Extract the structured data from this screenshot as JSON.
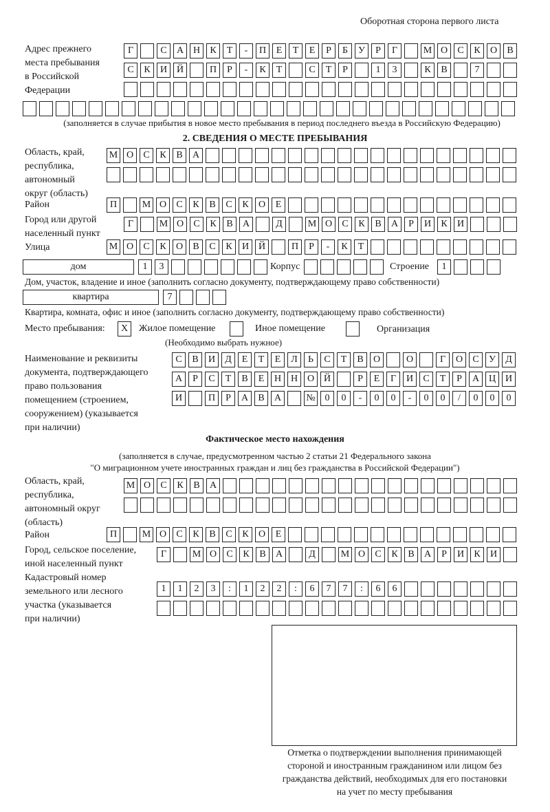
{
  "header": {
    "page_side": "Оборотная сторона первого листа"
  },
  "previous_address": {
    "label": [
      "Адрес прежнего",
      "места пребывания",
      "в Российской",
      "Федерации"
    ],
    "rows": [
      [
        "Г",
        "",
        "С",
        "А",
        "Н",
        "К",
        "Т",
        "-",
        "П",
        "Е",
        "Т",
        "Е",
        "Р",
        "Б",
        "У",
        "Р",
        "Г",
        "",
        "М",
        "О",
        "С",
        "К",
        "О",
        "В"
      ],
      [
        "С",
        "К",
        "И",
        "Й",
        "",
        "П",
        "Р",
        "-",
        "К",
        "Т",
        "",
        "С",
        "Т",
        "Р",
        "",
        "1",
        "3",
        "",
        "К",
        "В",
        "",
        "7",
        "",
        ""
      ],
      [
        "",
        "",
        "",
        "",
        "",
        "",
        "",
        "",
        "",
        "",
        "",
        "",
        "",
        "",
        "",
        "",
        "",
        "",
        "",
        "",
        "",
        "",
        "",
        ""
      ],
      [
        "",
        "",
        "",
        "",
        "",
        "",
        "",
        "",
        "",
        "",
        "",
        "",
        "",
        "",
        "",
        "",
        "",
        "",
        "",
        "",
        "",
        "",
        "",
        "",
        "",
        "",
        "",
        "",
        "",
        ""
      ]
    ],
    "note": "(заполняется в случае прибытия в новое место пребывания в период последнего въезда в Российскую Федерацию)"
  },
  "section2": {
    "title": "2. СВЕДЕНИЯ О МЕСТЕ ПРЕБЫВАНИЯ",
    "region": {
      "label": [
        "Область, край,",
        "республика,",
        "автономный",
        "округ (область)"
      ],
      "rows": [
        [
          "М",
          "О",
          "С",
          "К",
          "В",
          "А",
          "",
          "",
          "",
          "",
          "",
          "",
          "",
          "",
          "",
          "",
          "",
          "",
          "",
          "",
          "",
          "",
          "",
          "",
          ""
        ],
        [
          "",
          "",
          "",
          "",
          "",
          "",
          "",
          "",
          "",
          "",
          "",
          "",
          "",
          "",
          "",
          "",
          "",
          "",
          "",
          "",
          "",
          "",
          "",
          "",
          ""
        ]
      ]
    },
    "district": {
      "label": "Район",
      "cells": [
        "П",
        "",
        "М",
        "О",
        "С",
        "К",
        "В",
        "С",
        "К",
        "О",
        "Е",
        "",
        "",
        "",
        "",
        "",
        "",
        "",
        "",
        "",
        "",
        "",
        "",
        "",
        ""
      ]
    },
    "city": {
      "label": [
        "Город или другой",
        "населенный пункт"
      ],
      "cells": [
        "Г",
        "",
        "М",
        "О",
        "С",
        "К",
        "В",
        "А",
        "",
        "Д",
        "",
        "М",
        "О",
        "С",
        "К",
        "В",
        "А",
        "Р",
        "И",
        "К",
        "И",
        "",
        "",
        ""
      ]
    },
    "street": {
      "label": "Улица",
      "cells": [
        "М",
        "О",
        "С",
        "К",
        "О",
        "В",
        "С",
        "К",
        "И",
        "Й",
        "",
        "П",
        "Р",
        "-",
        "К",
        "Т",
        "",
        "",
        "",
        "",
        "",
        "",
        "",
        "",
        ""
      ]
    },
    "house": {
      "type": "дом",
      "cells": [
        "1",
        "3",
        "",
        "",
        "",
        "",
        "",
        ""
      ],
      "korpus_label": "Корпус",
      "korpus_cells": [
        "",
        "",
        "",
        "",
        ""
      ],
      "building_label": "Строение",
      "building_cells": [
        "1",
        "",
        "",
        ""
      ],
      "caption": "Дом, участок, владение и иное (заполнить согласно документу, подтверждающему право собственности)"
    },
    "apartment": {
      "type": "квартира",
      "cells": [
        "7",
        "",
        "",
        ""
      ],
      "caption": "Квартира, комната, офис и иное (заполнить согласно документу, подтверждающему право собственности)"
    },
    "stay_place": {
      "label": "Место пребывания:",
      "options": [
        {
          "label": "Жилое помещение",
          "mark": "X"
        },
        {
          "label": "Иное помещение",
          "mark": ""
        },
        {
          "label": "Организация",
          "mark": ""
        }
      ],
      "note": "(Необходимо выбрать нужное)"
    },
    "document": {
      "label": [
        "Наименование и реквизиты",
        "документа, подтверждающего",
        "право пользования",
        "помещением (строением,",
        "сооружением) (указывается",
        "при наличии)"
      ],
      "rows": [
        [
          "С",
          "В",
          "И",
          "Д",
          "Е",
          "Т",
          "Е",
          "Л",
          "Ь",
          "С",
          "Т",
          "В",
          "О",
          "",
          "О",
          "",
          "Г",
          "О",
          "С",
          "У",
          "Д"
        ],
        [
          "А",
          "Р",
          "С",
          "Т",
          "В",
          "Е",
          "Н",
          "Н",
          "О",
          "Й",
          "",
          "Р",
          "Е",
          "Г",
          "И",
          "С",
          "Т",
          "Р",
          "А",
          "Ц",
          "И"
        ],
        [
          "И",
          "",
          "П",
          "Р",
          "А",
          "В",
          "А",
          "",
          "№",
          "0",
          "0",
          "-",
          "0",
          "0",
          "-",
          "0",
          "0",
          "/",
          "0",
          "0",
          "0"
        ]
      ]
    }
  },
  "actual_location": {
    "title": "Фактическое место нахождения",
    "note": [
      "(заполняется в случае, предусмотренном частью 2 статьи 21 Федерального закона",
      "\"О миграционном учете иностранных граждан и лиц без гражданства в Российской Федерации\")"
    ],
    "region": {
      "label": [
        "Область, край,",
        "республика,",
        "автономный округ",
        "(область)"
      ],
      "rows": [
        [
          "М",
          "О",
          "С",
          "К",
          "В",
          "А",
          "",
          "",
          "",
          "",
          "",
          "",
          "",
          "",
          "",
          "",
          "",
          "",
          "",
          "",
          "",
          "",
          "",
          ""
        ],
        [
          "",
          "",
          "",
          "",
          "",
          "",
          "",
          "",
          "",
          "",
          "",
          "",
          "",
          "",
          "",
          "",
          "",
          "",
          "",
          "",
          "",
          "",
          "",
          ""
        ]
      ]
    },
    "district": {
      "label": "Район",
      "cells": [
        "П",
        "",
        "М",
        "О",
        "С",
        "К",
        "В",
        "С",
        "К",
        "О",
        "Е",
        "",
        "",
        "",
        "",
        "",
        "",
        "",
        "",
        "",
        "",
        "",
        "",
        "",
        ""
      ]
    },
    "city": {
      "label": [
        "Город, сельское поселение,",
        "иной населенный пункт"
      ],
      "cells": [
        "Г",
        "",
        "М",
        "О",
        "С",
        "К",
        "В",
        "А",
        "",
        "Д",
        "",
        "М",
        "О",
        "С",
        "К",
        "В",
        "А",
        "Р",
        "И",
        "К",
        "И",
        ""
      ]
    },
    "cadastral": {
      "label": [
        "Кадастровый номер",
        "земельного или лесного",
        "участка (указывается",
        "при наличии)"
      ],
      "rows": [
        [
          "1",
          "1",
          "2",
          "3",
          ":",
          "1",
          "2",
          "2",
          ":",
          "6",
          "7",
          "7",
          ":",
          "6",
          "6",
          "",
          "",
          "",
          "",
          "",
          "",
          ""
        ],
        [
          "",
          "",
          "",
          "",
          "",
          "",
          "",
          "",
          "",
          "",
          "",
          "",
          "",
          "",
          "",
          "",
          "",
          "",
          "",
          "",
          "",
          ""
        ]
      ]
    }
  },
  "confirmation": {
    "caption": [
      "Отметка о подтверждении выполнения принимающей",
      "стороной и иностранным гражданином или лицом без",
      "гражданства действий, необходимых для его постановки",
      "на учет по месту пребывания"
    ]
  }
}
